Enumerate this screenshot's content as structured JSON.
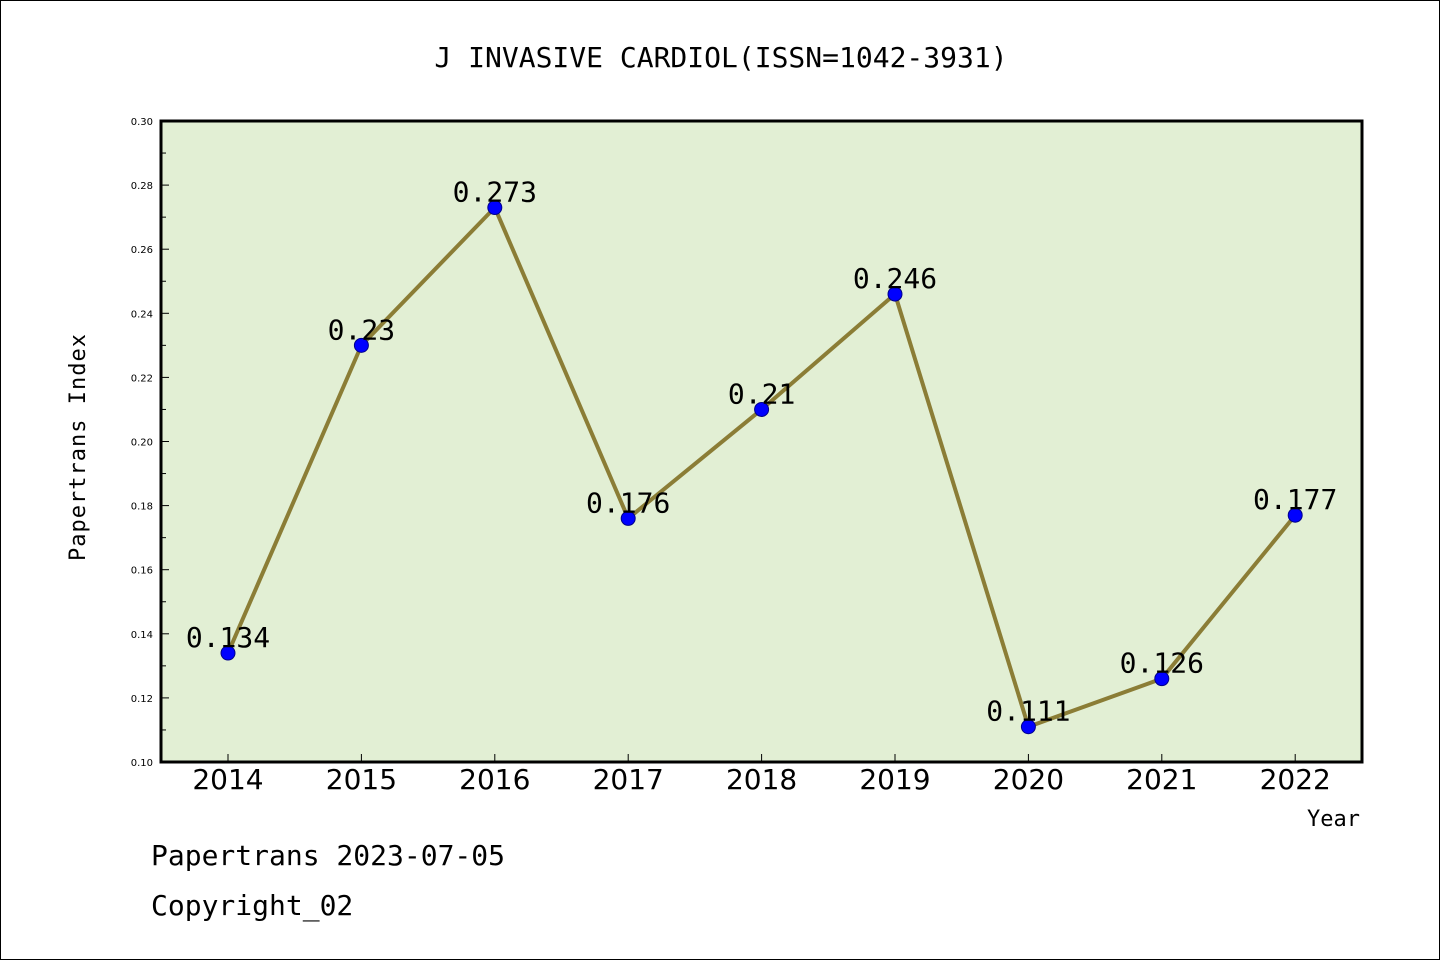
{
  "chart_data": {
    "type": "line",
    "title": "J INVASIVE CARDIOL(ISSN=1042-3931)",
    "xlabel": "Year",
    "ylabel": "Papertrans Index",
    "categories": [
      "2014",
      "2015",
      "2016",
      "2017",
      "2018",
      "2019",
      "2020",
      "2021",
      "2022"
    ],
    "values": [
      0.134,
      0.23,
      0.273,
      0.176,
      0.21,
      0.246,
      0.111,
      0.126,
      0.177
    ],
    "data_labels": [
      "0.134",
      "0.23",
      "0.273",
      "0.176",
      "0.21",
      "0.246",
      "0.111",
      "0.126",
      "0.177"
    ],
    "ylim": [
      0.1,
      0.3
    ],
    "yticks": [
      "0.10",
      "0.12",
      "0.14",
      "0.16",
      "0.18",
      "0.20",
      "0.22",
      "0.24",
      "0.26",
      "0.28",
      "0.30"
    ],
    "grid": false,
    "legend": "none",
    "colors": {
      "plot_background": "#e2efd4",
      "line": "#8b7d36",
      "marker": "#0000ff"
    }
  },
  "footer": {
    "line1": "Papertrans 2023-07-05",
    "line2": "Copyright_02"
  }
}
